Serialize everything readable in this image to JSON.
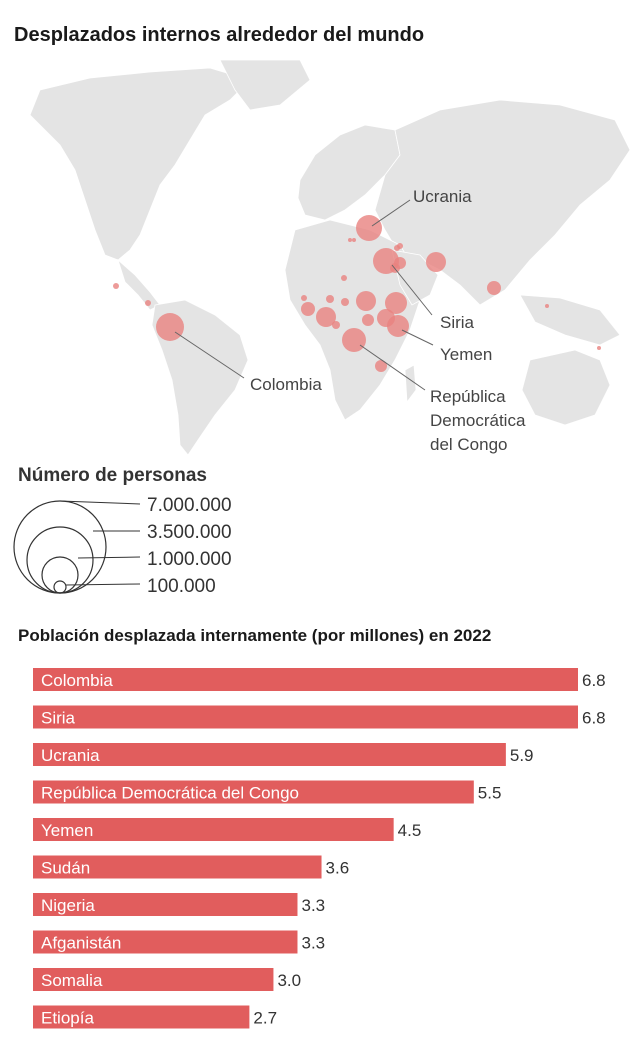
{
  "map_title": "Desplazados internos alrededor del mundo",
  "map_labels": {
    "ucrania": "Ucrania",
    "siria": "Siria",
    "yemen": "Yemen",
    "colombia": "Colombia",
    "rdc_1": "República",
    "rdc_2": "Democrática",
    "rdc_3": "del Congo"
  },
  "legend": {
    "title": "Número de personas",
    "entries": [
      "7.000.000",
      "3.500.000",
      "1.000.000",
      "100.000"
    ]
  },
  "colors": {
    "bubble": "#e8827f",
    "bar": "#e15d5d",
    "land": "#e4e4e4"
  },
  "chart_data": {
    "type": "bar",
    "orientation": "horizontal",
    "title": "Población desplazada internamente (por millones) en 2022",
    "categories": [
      "Colombia",
      "Siria",
      "Ucrania",
      "República Democrática del Congo",
      "Yemen",
      "Sudán",
      "Nigeria",
      "Afganistán",
      "Somalia",
      "Etiopía"
    ],
    "values": [
      6.8,
      6.8,
      5.9,
      5.5,
      4.5,
      3.6,
      3.3,
      3.3,
      3.0,
      2.7
    ],
    "value_labels": [
      "6.8",
      "6.8",
      "5.9",
      "5.5",
      "4.5",
      "3.6",
      "3.3",
      "3.3",
      "3.0",
      "2.7"
    ],
    "xlim": [
      0,
      6.8
    ]
  }
}
